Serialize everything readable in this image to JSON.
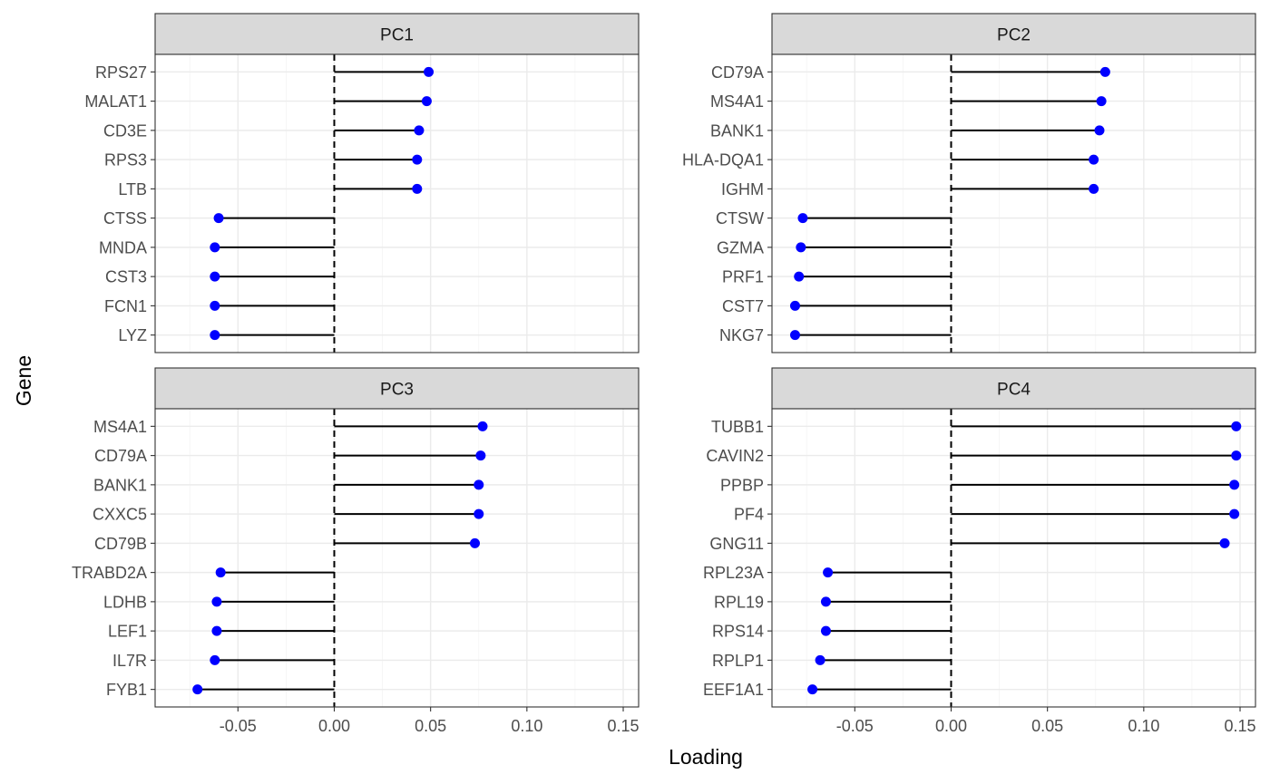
{
  "chart_data": {
    "type": "lollipop",
    "xlabel": "Loading",
    "ylabel": "Gene",
    "xlim": [
      -0.093,
      0.158
    ],
    "xticks": [
      -0.05,
      0.0,
      0.05,
      0.1,
      0.15
    ],
    "xtick_labels": [
      "-0.05",
      "0.00",
      "0.05",
      "0.10",
      "0.15"
    ],
    "reference_line": 0,
    "grid": true,
    "point_color": "#0000ff",
    "panels": [
      {
        "title": "PC1",
        "genes": [
          "RPS27",
          "MALAT1",
          "CD3E",
          "RPS3",
          "LTB",
          "CTSS",
          "MNDA",
          "CST3",
          "FCN1",
          "LYZ"
        ],
        "values": [
          0.049,
          0.048,
          0.044,
          0.043,
          0.043,
          -0.06,
          -0.062,
          -0.062,
          -0.062,
          -0.062
        ]
      },
      {
        "title": "PC2",
        "genes": [
          "CD79A",
          "MS4A1",
          "BANK1",
          "HLA-DQA1",
          "IGHM",
          "CTSW",
          "GZMA",
          "PRF1",
          "CST7",
          "NKG7"
        ],
        "values": [
          0.08,
          0.078,
          0.077,
          0.074,
          0.074,
          -0.077,
          -0.078,
          -0.079,
          -0.081,
          -0.081
        ]
      },
      {
        "title": "PC3",
        "genes": [
          "MS4A1",
          "CD79A",
          "BANK1",
          "CXXC5",
          "CD79B",
          "TRABD2A",
          "LDHB",
          "LEF1",
          "IL7R",
          "FYB1"
        ],
        "values": [
          0.077,
          0.076,
          0.075,
          0.075,
          0.073,
          -0.059,
          -0.061,
          -0.061,
          -0.062,
          -0.071
        ]
      },
      {
        "title": "PC4",
        "genes": [
          "TUBB1",
          "CAVIN2",
          "PPBP",
          "PF4",
          "GNG11",
          "RPL23A",
          "RPL19",
          "RPS14",
          "RPLP1",
          "EEF1A1"
        ],
        "values": [
          0.148,
          0.148,
          0.147,
          0.147,
          0.142,
          -0.064,
          -0.065,
          -0.065,
          -0.068,
          -0.072
        ]
      }
    ]
  }
}
